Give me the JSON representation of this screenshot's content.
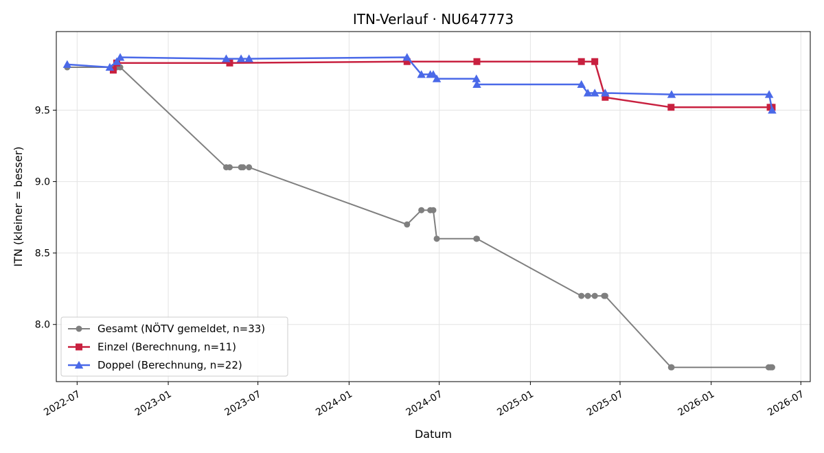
{
  "chart_data": {
    "type": "line",
    "title": "ITN-Verlauf · NU647773",
    "xlabel": "Datum",
    "ylabel": "ITN  (kleiner = besser)",
    "x_scale": "time",
    "xlim": [
      "2022-05-20",
      "2026-07-20"
    ],
    "ylim": [
      7.6,
      10.05
    ],
    "x_ticks": [
      "2022-07",
      "2023-01",
      "2023-07",
      "2024-01",
      "2024-07",
      "2025-01",
      "2025-07",
      "2026-01",
      "2026-07"
    ],
    "y_ticks": [
      8.0,
      8.5,
      9.0,
      9.5
    ],
    "grid": true,
    "legend_position": "lower-left",
    "series": [
      {
        "name": "Gesamt (NÖTV gemeldet, n=33)",
        "color": "#555555",
        "marker": "circle",
        "points": [
          [
            "2022-06-11",
            9.8
          ],
          [
            "2022-09-12",
            9.8
          ],
          [
            "2022-09-19",
            9.8
          ],
          [
            "2022-09-26",
            9.8
          ],
          [
            "2023-04-28",
            9.1
          ],
          [
            "2023-05-05",
            9.1
          ],
          [
            "2023-05-28",
            9.1
          ],
          [
            "2023-06-01",
            9.1
          ],
          [
            "2023-06-13",
            9.1
          ],
          [
            "2024-04-27",
            8.7
          ],
          [
            "2024-05-26",
            8.8
          ],
          [
            "2024-06-13",
            8.8
          ],
          [
            "2024-06-19",
            8.8
          ],
          [
            "2024-06-26",
            8.6
          ],
          [
            "2024-09-14",
            8.6
          ],
          [
            "2024-09-15",
            8.6
          ],
          [
            "2025-04-14",
            8.2
          ],
          [
            "2025-04-27",
            8.2
          ],
          [
            "2025-05-11",
            8.2
          ],
          [
            "2025-05-30",
            8.2
          ],
          [
            "2025-06-01",
            8.2
          ],
          [
            "2025-10-12",
            7.7
          ],
          [
            "2025-10-13",
            7.7
          ],
          [
            "2026-04-27",
            7.7
          ],
          [
            "2026-05-01",
            7.7
          ],
          [
            "2026-05-04",
            7.7
          ]
        ]
      },
      {
        "name": "Einzel (Berechnung, n=11)",
        "color": "#c8203f",
        "marker": "square",
        "points": [
          [
            "2022-09-12",
            9.78
          ],
          [
            "2022-09-19",
            9.83
          ],
          [
            "2023-05-05",
            9.83
          ],
          [
            "2024-04-27",
            9.84
          ],
          [
            "2024-09-15",
            9.84
          ],
          [
            "2025-04-14",
            9.84
          ],
          [
            "2025-05-11",
            9.84
          ],
          [
            "2025-06-01",
            9.59
          ],
          [
            "2025-10-12",
            9.52
          ],
          [
            "2026-04-30",
            9.52
          ],
          [
            "2026-05-04",
            9.52
          ]
        ]
      },
      {
        "name": "Doppel (Berechnung, n=22)",
        "color": "#4a69e8",
        "marker": "triangle",
        "points": [
          [
            "2022-06-11",
            9.82
          ],
          [
            "2022-09-05",
            9.8
          ],
          [
            "2022-09-19",
            9.84
          ],
          [
            "2022-09-26",
            9.87
          ],
          [
            "2023-04-28",
            9.86
          ],
          [
            "2023-05-28",
            9.86
          ],
          [
            "2023-06-13",
            9.86
          ],
          [
            "2024-04-27",
            9.87
          ],
          [
            "2024-05-26",
            9.75
          ],
          [
            "2024-06-13",
            9.75
          ],
          [
            "2024-06-19",
            9.75
          ],
          [
            "2024-06-26",
            9.72
          ],
          [
            "2024-09-14",
            9.72
          ],
          [
            "2024-09-15",
            9.68
          ],
          [
            "2025-04-14",
            9.68
          ],
          [
            "2025-04-27",
            9.62
          ],
          [
            "2025-05-11",
            9.62
          ],
          [
            "2025-06-01",
            9.62
          ],
          [
            "2025-10-13",
            9.61
          ],
          [
            "2026-04-28",
            9.61
          ],
          [
            "2026-05-04",
            9.5
          ]
        ]
      }
    ]
  }
}
